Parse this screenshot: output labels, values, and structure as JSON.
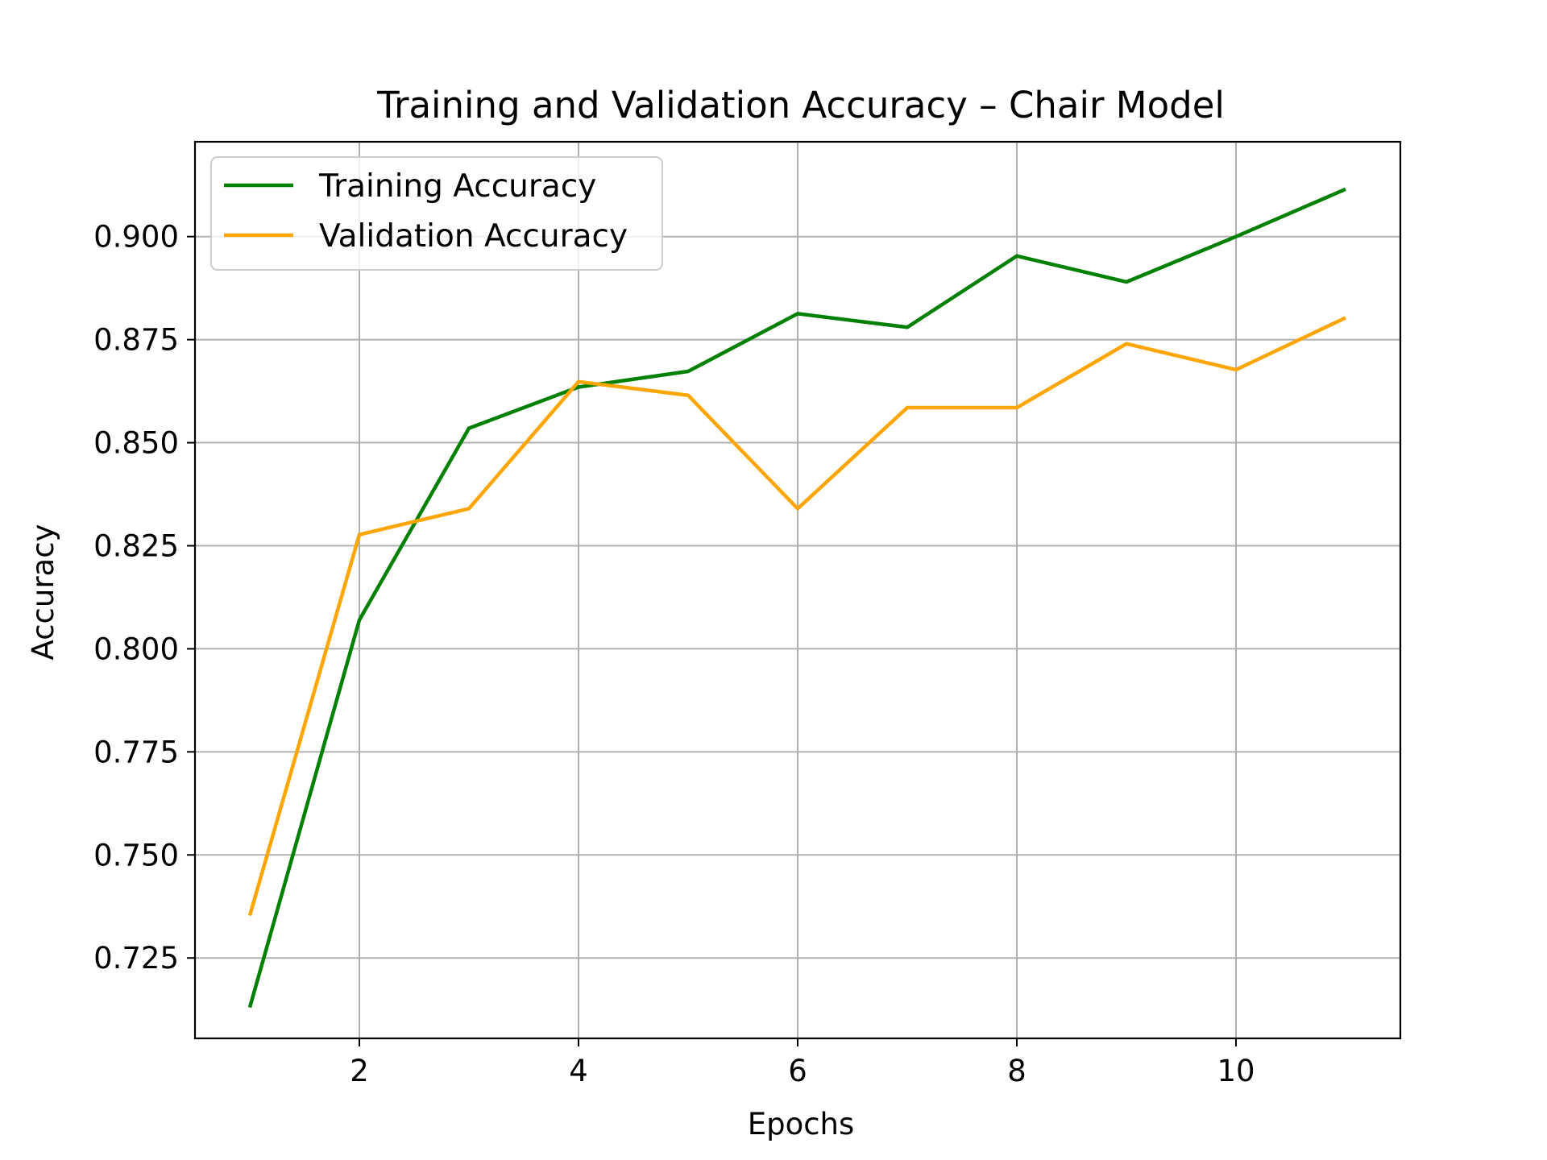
{
  "chart_data": {
    "type": "line",
    "title": "Training and Validation Accuracy – Chair Model",
    "xlabel": "Epochs",
    "ylabel": "Accuracy",
    "x": [
      1,
      2,
      3,
      4,
      5,
      6,
      7,
      8,
      9,
      10,
      11
    ],
    "xlim": [
      0.5,
      11.5
    ],
    "ylim": [
      0.7055,
      0.923
    ],
    "xticks": [
      2,
      4,
      6,
      8,
      10
    ],
    "xtick_labels": [
      "2",
      "4",
      "6",
      "8",
      "10"
    ],
    "yticks": [
      0.725,
      0.75,
      0.775,
      0.8,
      0.825,
      0.85,
      0.875,
      0.9
    ],
    "ytick_labels": [
      "0.725",
      "0.750",
      "0.775",
      "0.800",
      "0.825",
      "0.850",
      "0.875",
      "0.900"
    ],
    "grid": true,
    "legend_position": "top-left",
    "series": [
      {
        "name": "Training Accuracy",
        "color": "#008000",
        "values": [
          0.713,
          0.807,
          0.8535,
          0.8635,
          0.8673,
          0.8813,
          0.878,
          0.8953,
          0.889,
          0.9,
          0.9115
        ]
      },
      {
        "name": "Validation Accuracy",
        "color": "#FFA500",
        "values": [
          0.7353,
          0.8277,
          0.834,
          0.8648,
          0.8615,
          0.834,
          0.8585,
          0.8585,
          0.874,
          0.8677,
          0.8803
        ]
      }
    ]
  }
}
